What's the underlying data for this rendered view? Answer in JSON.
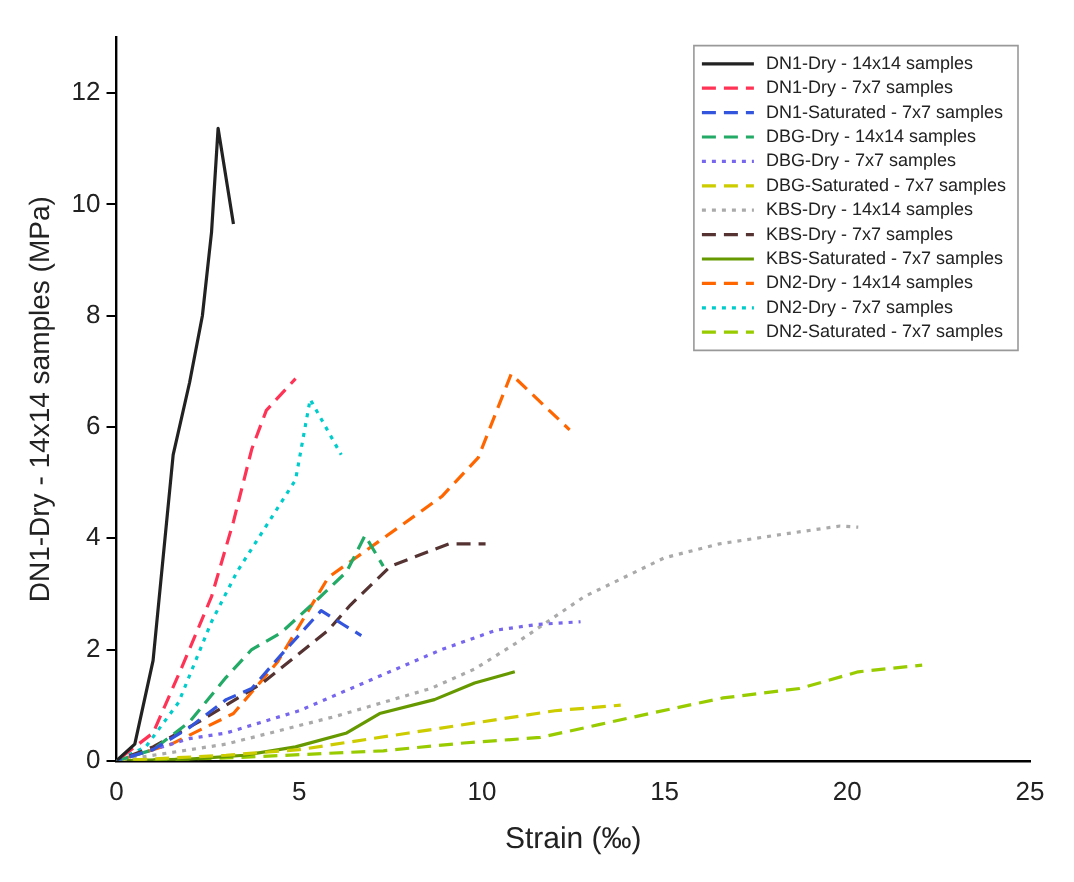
{
  "chart_data": {
    "type": "line",
    "xlabel": "Strain (‰)",
    "ylabel": "DN1-Dry - 14x14 samples (MPa)",
    "xlim": [
      0,
      25
    ],
    "xticks": [
      0,
      5,
      10,
      15,
      20,
      25
    ],
    "ylim": [
      0,
      13
    ],
    "yticks": [
      0,
      2,
      4,
      6,
      8,
      10,
      12
    ],
    "grid": false,
    "legend": "top right",
    "marker": "none",
    "series": [
      {
        "name": "DN1-Dry - 14x14 samples",
        "color": "#222222",
        "line_style": "solid",
        "x": [
          0,
          0.5,
          1.0,
          1.55,
          2.0,
          2.35,
          2.6,
          2.78,
          3.2
        ],
        "values": [
          0,
          0.3,
          1.8,
          5.5,
          6.8,
          8.0,
          9.5,
          11.37,
          9.65
        ]
      },
      {
        "name": "DN1-Dry - 7x7 samples",
        "color": "#ff3355",
        "line_style": "dashed",
        "x": [
          0,
          1.0,
          1.8,
          2.6,
          3.2,
          3.7,
          4.1,
          4.9
        ],
        "values": [
          0,
          0.5,
          1.7,
          2.95,
          4.3,
          5.6,
          6.3,
          6.87
        ]
      },
      {
        "name": "DN1-Saturated - 7x7 samples",
        "color": "#3355dd",
        "line_style": "dashed",
        "x": [
          0,
          1.0,
          2.0,
          3.0,
          3.7,
          4.5,
          5.6,
          6.2,
          6.7
        ],
        "values": [
          0,
          0.2,
          0.6,
          1.1,
          1.3,
          1.9,
          2.7,
          2.45,
          2.25
        ]
      },
      {
        "name": "DBG-Dry - 14x14 samples",
        "color": "#22aa66",
        "line_style": "dashed",
        "x": [
          0,
          1.0,
          2.0,
          3.0,
          3.7,
          4.5,
          5.5,
          6.3,
          6.8,
          7.3
        ],
        "values": [
          0,
          0.2,
          0.7,
          1.5,
          2.0,
          2.3,
          2.9,
          3.4,
          4.05,
          3.5
        ]
      },
      {
        "name": "DBG-Dry - 7x7 samples",
        "color": "#7766ee",
        "line_style": "dotted",
        "x": [
          0,
          2.0,
          3.0,
          5.0,
          7.3,
          8.9,
          10.4,
          11.5,
          12.7
        ],
        "values": [
          0,
          0.4,
          0.5,
          0.9,
          1.55,
          2.0,
          2.35,
          2.45,
          2.5
        ]
      },
      {
        "name": "DBG-Saturated - 7x7 samples",
        "color": "#cccc00",
        "line_style": "dashed",
        "x": [
          0,
          3.0,
          5.0,
          8.0,
          10.0,
          12.0,
          13.8
        ],
        "values": [
          0,
          0.1,
          0.2,
          0.5,
          0.7,
          0.9,
          1.0
        ]
      },
      {
        "name": "KBS-Dry - 14x14 samples",
        "color": "#aaaaaa",
        "line_style": "dotted",
        "x": [
          0,
          3.0,
          6.0,
          8.6,
          9.8,
          10.9,
          12.8,
          13.9,
          15.0,
          16.5,
          18.0,
          19.8,
          20.3
        ],
        "values": [
          0,
          0.3,
          0.8,
          1.3,
          1.65,
          2.1,
          2.95,
          3.3,
          3.65,
          3.9,
          4.05,
          4.22,
          4.2
        ]
      },
      {
        "name": "KBS-Dry - 7x7 samples",
        "color": "#553333",
        "line_style": "dashed",
        "x": [
          0,
          1.0,
          2.25,
          4.0,
          5.8,
          6.4,
          7.5,
          9.1,
          10.1
        ],
        "values": [
          0,
          0.25,
          0.7,
          1.4,
          2.35,
          2.8,
          3.5,
          3.9,
          3.9
        ]
      },
      {
        "name": "KBS-Saturated - 7x7 samples",
        "color": "#669900",
        "line_style": "solid",
        "x": [
          0,
          2.0,
          3.5,
          4.9,
          6.3,
          7.2,
          8.7,
          9.8,
          10.9
        ],
        "values": [
          0,
          0.03,
          0.1,
          0.25,
          0.5,
          0.85,
          1.1,
          1.4,
          1.6
        ]
      },
      {
        "name": "DN2-Dry - 14x14 samples",
        "color": "#ff6600",
        "line_style": "dashed",
        "x": [
          0,
          1.5,
          3.2,
          4.4,
          5.8,
          7.3,
          8.9,
          9.9,
          10.8,
          12.4
        ],
        "values": [
          0,
          0.3,
          0.85,
          1.77,
          3.3,
          4.0,
          4.75,
          5.45,
          6.95,
          5.95
        ]
      },
      {
        "name": "DN2-Dry - 7x7 samples",
        "color": "#00cccc",
        "line_style": "dotted",
        "x": [
          0,
          0.8,
          1.7,
          2.6,
          3.3,
          4.9,
          5.3,
          6.15
        ],
        "values": [
          0,
          0.25,
          1.05,
          2.5,
          3.4,
          5.05,
          6.5,
          5.5
        ]
      },
      {
        "name": "DN2-Saturated - 7x7 samples",
        "color": "#99cc00",
        "line_style": "dashed",
        "x": [
          0,
          3.0,
          7.3,
          9.5,
          11.6,
          13.2,
          14.8,
          16.6,
          18.7,
          20.3,
          22.05
        ],
        "values": [
          0,
          0.05,
          0.18,
          0.32,
          0.42,
          0.65,
          0.88,
          1.13,
          1.3,
          1.6,
          1.72
        ]
      }
    ]
  }
}
